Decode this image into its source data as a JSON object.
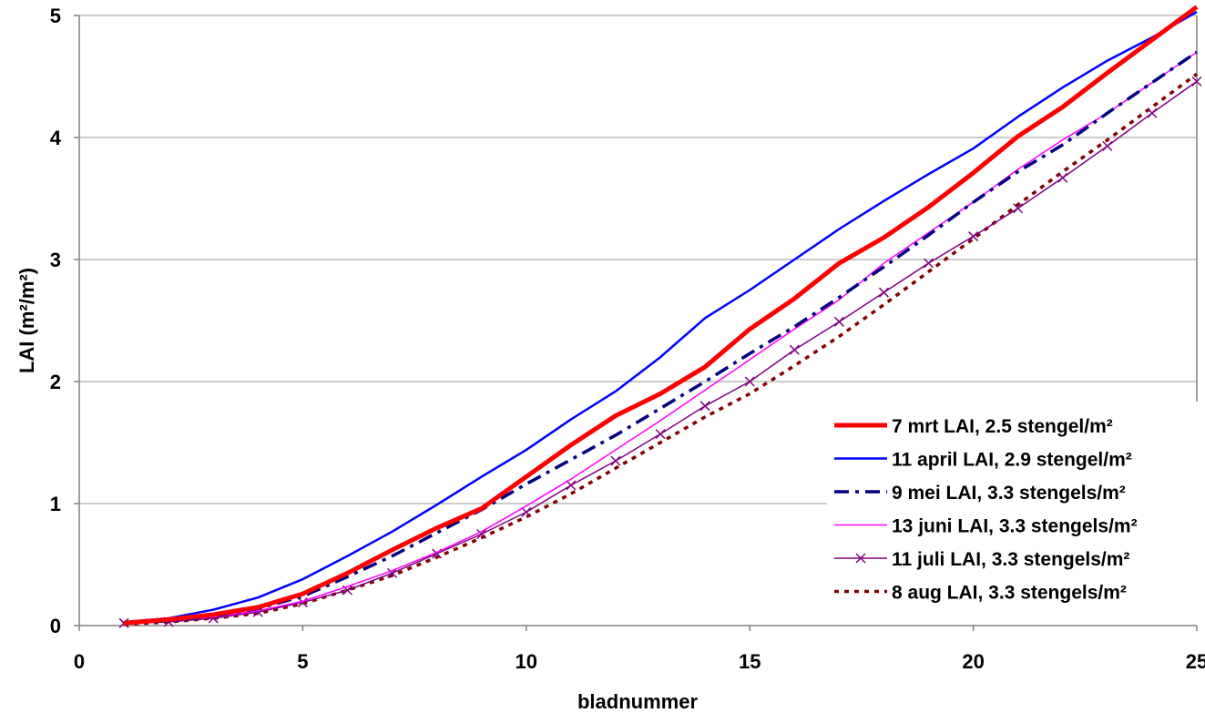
{
  "chart_data": {
    "type": "line",
    "xlabel": "bladnummer",
    "ylabel": "LAI (m²/m²)",
    "xlim": [
      0,
      25
    ],
    "ylim": [
      0,
      5
    ],
    "xticks": [
      0,
      5,
      10,
      15,
      20,
      25
    ],
    "yticks": [
      0,
      1,
      2,
      3,
      4,
      5
    ],
    "grid": "horizontal",
    "legend_position": "bottom-right",
    "x": [
      1,
      2,
      3,
      4,
      5,
      6,
      7,
      8,
      9,
      10,
      11,
      12,
      13,
      14,
      15,
      16,
      17,
      18,
      19,
      20,
      21,
      22,
      23,
      24,
      25
    ],
    "series": [
      {
        "name": "7 mrt LAI, 2.5 stengel/m²",
        "color": "#ff0000",
        "style": "solid-thick",
        "values": [
          0.02,
          0.05,
          0.09,
          0.15,
          0.26,
          0.43,
          0.62,
          0.8,
          0.96,
          1.22,
          1.48,
          1.72,
          1.9,
          2.12,
          2.43,
          2.68,
          2.97,
          3.18,
          3.43,
          3.71,
          4.01,
          4.25,
          4.53,
          4.8,
          5.07
        ]
      },
      {
        "name": "11 april LAI, 2.9 stengel/m²",
        "color": "#0000ff",
        "style": "solid",
        "values": [
          0.03,
          0.06,
          0.13,
          0.23,
          0.38,
          0.57,
          0.77,
          0.99,
          1.22,
          1.44,
          1.69,
          1.92,
          2.2,
          2.52,
          2.75,
          3.0,
          3.25,
          3.48,
          3.7,
          3.91,
          4.17,
          4.41,
          4.63,
          4.82,
          5.03
        ]
      },
      {
        "name": "9 mei  LAI, 3.3 stengels/m²",
        "color": "#000080",
        "style": "dashdot",
        "values": [
          0.02,
          0.04,
          0.08,
          0.14,
          0.24,
          0.4,
          0.57,
          0.76,
          0.95,
          1.16,
          1.36,
          1.56,
          1.78,
          2.0,
          2.23,
          2.45,
          2.69,
          2.94,
          3.2,
          3.47,
          3.72,
          3.94,
          4.2,
          4.45,
          4.7
        ]
      },
      {
        "name": " 13 juni LAI, 3.3 stengels/m²",
        "color": "#ff00ff",
        "style": "solid-thin",
        "values": [
          0.02,
          0.04,
          0.07,
          0.12,
          0.2,
          0.32,
          0.45,
          0.6,
          0.77,
          0.98,
          1.2,
          1.44,
          1.68,
          1.93,
          2.18,
          2.43,
          2.67,
          2.97,
          3.22,
          3.47,
          3.74,
          3.98,
          4.2,
          4.45,
          4.7
        ]
      },
      {
        "name": "11 juli LAI, 3.3 stengels/m²",
        "color": "#800080",
        "style": "solid-marker-x",
        "values": [
          0.02,
          0.03,
          0.06,
          0.11,
          0.19,
          0.29,
          0.43,
          0.59,
          0.75,
          0.93,
          1.15,
          1.35,
          1.57,
          1.8,
          2.0,
          2.26,
          2.49,
          2.73,
          2.97,
          3.19,
          3.42,
          3.67,
          3.93,
          4.2,
          4.46
        ]
      },
      {
        "name": "8 aug LAI, 3.3 stengels/m²",
        "color": "#800000",
        "style": "dotted",
        "values": [
          0.01,
          0.03,
          0.06,
          0.1,
          0.18,
          0.29,
          0.41,
          0.56,
          0.72,
          0.89,
          1.08,
          1.29,
          1.5,
          1.71,
          1.9,
          2.13,
          2.37,
          2.63,
          2.9,
          3.17,
          3.45,
          3.72,
          3.98,
          4.25,
          4.52
        ]
      }
    ]
  }
}
